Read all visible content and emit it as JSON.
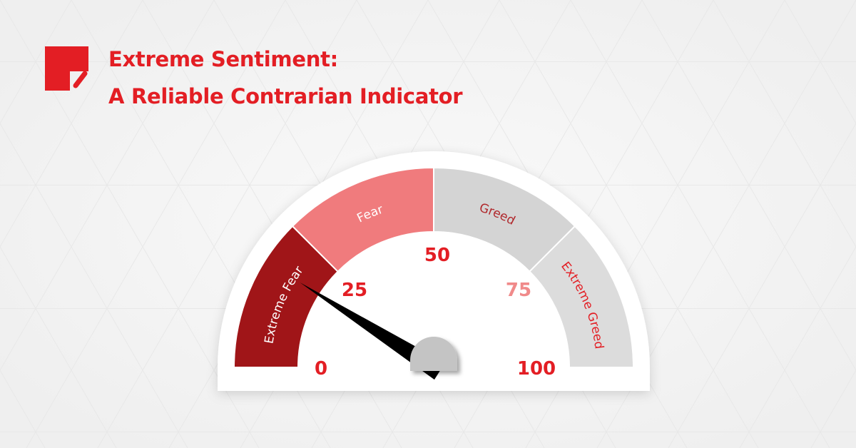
{
  "header": {
    "title_line1": "Extreme Sentiment:",
    "title_line2": "A Reliable Contrarian Indicator",
    "logo": "brand-logo"
  },
  "colors": {
    "accent": "#e31e24",
    "extreme_fear": "#a01518",
    "fear": "#f07b7d",
    "greed": "#d4d4d4",
    "extreme_greed": "#dcdcdc",
    "needle": "#000000",
    "hub": "#c4c4c4",
    "background": "#f2f2f2"
  },
  "chart_data": {
    "type": "gauge",
    "range": [
      0,
      100
    ],
    "ticks": [
      "0",
      "25",
      "50",
      "75",
      "100"
    ],
    "segments": [
      {
        "label": "Extreme Fear",
        "from": 0,
        "to": 25,
        "color": "#a01518",
        "text_color": "#ffffff"
      },
      {
        "label": "Fear",
        "from": 25,
        "to": 50,
        "color": "#f07b7d",
        "text_color": "#ffffff"
      },
      {
        "label": "Greed",
        "from": 50,
        "to": 75,
        "color": "#d4d4d4",
        "text_color": "#b0262a"
      },
      {
        "label": "Extreme Greed",
        "from": 75,
        "to": 100,
        "color": "#dcdcdc",
        "text_color": "#e31e24"
      }
    ],
    "needle_value": 18
  }
}
